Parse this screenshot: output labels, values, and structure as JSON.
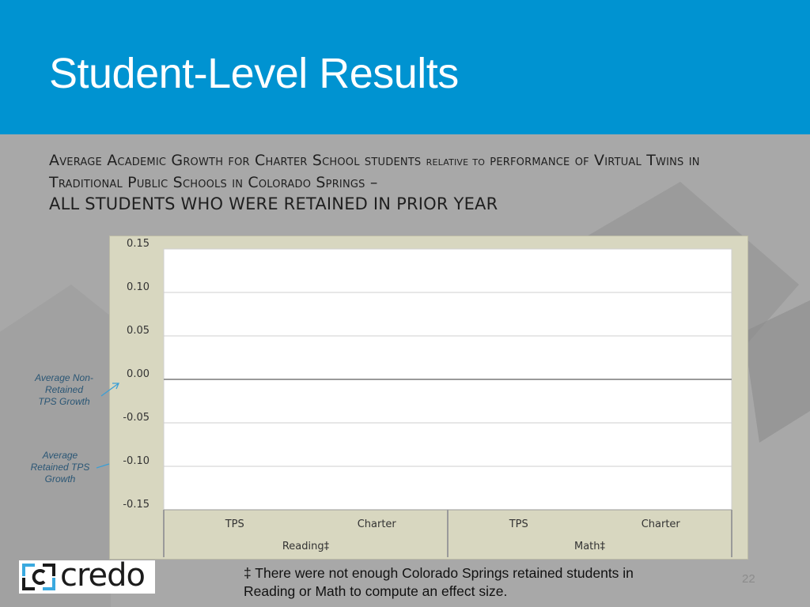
{
  "slide": {
    "title": "Student-Level Results",
    "subtitle_parts": [
      "A",
      "verage ",
      "A",
      "cademic ",
      "G",
      "rowth for ",
      "C",
      "harter ",
      "S",
      "chool students ",
      "relative to",
      " performance of ",
      "V",
      "irtual ",
      "T",
      "wins in ",
      "T",
      "raditional ",
      "P",
      "ublic ",
      "S",
      "chools in ",
      "C",
      "olorado ",
      "S",
      "prings –"
    ],
    "subtitle_line2": "All students who were retained in prior year",
    "annotations": {
      "non_retained": "Average Non-Retained TPS Growth",
      "retained": "Average Retained TPS Growth"
    },
    "footnote": "‡ There were not enough Colorado Springs retained students in Reading or Math to compute an effect size.",
    "page_number": "22",
    "logo_text": "credo"
  },
  "colors": {
    "header": "#0093d1",
    "chart_frame": "#d8d7c0",
    "plot_area": "#ffffff",
    "arrow": "#3a9fd6"
  },
  "chart_data": {
    "type": "bar",
    "title": "",
    "xlabel": "",
    "ylabel": "",
    "ylim": [
      -0.15,
      0.15
    ],
    "yticks": [
      "0.15",
      "0.10",
      "0.05",
      "0.00",
      "-0.05",
      "-0.10",
      "-0.15"
    ],
    "groups": [
      {
        "name": "Reading‡",
        "categories": [
          "TPS",
          "Charter"
        ]
      },
      {
        "name": "Math‡",
        "categories": [
          "TPS",
          "Charter"
        ]
      }
    ],
    "series": [],
    "grid": true,
    "legend": "none"
  }
}
